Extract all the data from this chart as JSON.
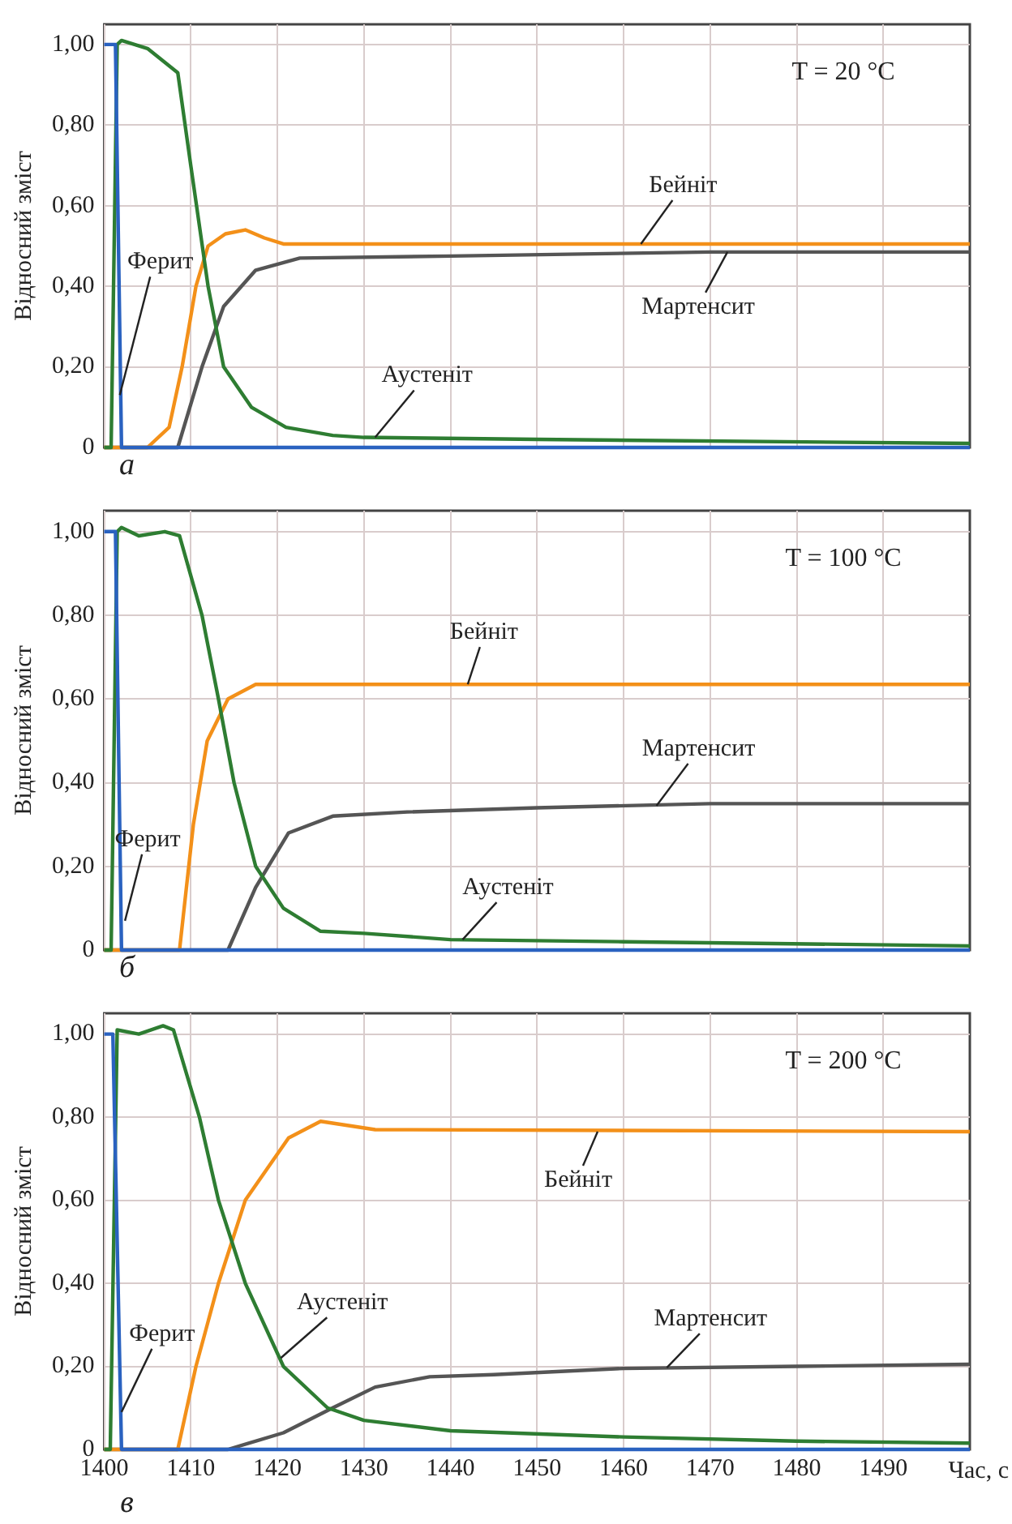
{
  "chart_data": [
    {
      "type": "line",
      "ylabel": "Відносний зміст",
      "xlim": [
        1400,
        1500
      ],
      "xticks": [
        1400,
        1410,
        1420,
        1430,
        1440,
        1450,
        1460,
        1470,
        1480,
        1490
      ],
      "ylim": [
        0,
        1.05
      ],
      "yticks": [
        {
          "value": 0,
          "label": "0"
        },
        {
          "value": 0.2,
          "label": "0,20"
        },
        {
          "value": 0.4,
          "label": "0,40"
        },
        {
          "value": 0.6,
          "label": "0,60"
        },
        {
          "value": 0.8,
          "label": "0,80"
        },
        {
          "value": 1,
          "label": "1,00"
        }
      ],
      "grid": true,
      "tick_labels": "y",
      "series": [
        {
          "color": "#2a62c0",
          "x": [
            1400,
            1401.3,
            1402,
            1500
          ],
          "values": [
            1,
            1,
            0,
            0
          ]
        },
        {
          "color": "#2e7d32",
          "x": [
            1400,
            1400.8,
            1401.5,
            1402,
            1405,
            1408.5,
            1410,
            1412,
            1413.8,
            1417,
            1421,
            1426.4,
            1430,
            1450,
            1500
          ],
          "values": [
            0,
            0,
            1,
            1.01,
            0.99,
            0.93,
            0.7,
            0.4,
            0.2,
            0.1,
            0.05,
            0.03,
            0.025,
            0.02,
            0.01
          ]
        },
        {
          "color": "#f39019",
          "x": [
            1400,
            1405,
            1407.5,
            1409,
            1410.6,
            1412,
            1414,
            1416.3,
            1418.5,
            1420.7,
            1500
          ],
          "values": [
            0,
            0,
            0.05,
            0.2,
            0.4,
            0.5,
            0.53,
            0.54,
            0.52,
            0.505,
            0.505
          ]
        },
        {
          "color": "#555555",
          "x": [
            1400,
            1408.5,
            1411.3,
            1413.8,
            1417.5,
            1422.6,
            1440,
            1470,
            1500
          ],
          "values": [
            0,
            0,
            0.2,
            0.35,
            0.44,
            0.47,
            0.475,
            0.485,
            0.485
          ]
        }
      ],
      "annotations": [
        "T = 20 °C",
        "а",
        {
          "text": "Ферит",
          "x": 1401.8,
          "y": 0.13
        },
        {
          "text": "Аустеніт",
          "x": 1431.3,
          "y": 0.025
        },
        {
          "text": "Бейніт",
          "x": 1462,
          "y": 0.505
        },
        {
          "text": "Мартенсит",
          "x": 1472,
          "y": 0.485
        }
      ]
    },
    {
      "type": "line",
      "ylabel": "Відносний зміст",
      "xlim": [
        1400,
        1500
      ],
      "xticks": [
        1400,
        1410,
        1420,
        1430,
        1440,
        1450,
        1460,
        1470,
        1480,
        1490
      ],
      "ylim": [
        0,
        1.05
      ],
      "yticks": [
        {
          "value": 0,
          "label": "0"
        },
        {
          "value": 0.2,
          "label": "0,20"
        },
        {
          "value": 0.4,
          "label": "0,40"
        },
        {
          "value": 0.6,
          "label": "0,60"
        },
        {
          "value": 0.8,
          "label": "0,80"
        },
        {
          "value": 1,
          "label": "1,00"
        }
      ],
      "grid": true,
      "tick_labels": "y",
      "series": [
        {
          "color": "#2a62c0",
          "x": [
            1400,
            1401.3,
            1402,
            1500
          ],
          "values": [
            1,
            1,
            0,
            0
          ]
        },
        {
          "color": "#2e7d32",
          "x": [
            1400,
            1400.8,
            1401.5,
            1402,
            1404,
            1407,
            1408.7,
            1411.3,
            1413.2,
            1415,
            1417.5,
            1420.7,
            1425,
            1430,
            1440,
            1460,
            1500
          ],
          "values": [
            0,
            0,
            1,
            1.01,
            0.99,
            1,
            0.99,
            0.8,
            0.6,
            0.4,
            0.2,
            0.1,
            0.045,
            0.04,
            0.025,
            0.02,
            0.01
          ]
        },
        {
          "color": "#f39019",
          "x": [
            1400,
            1408.7,
            1410.3,
            1411.9,
            1414.3,
            1417.5,
            1500
          ],
          "values": [
            0,
            0,
            0.3,
            0.5,
            0.6,
            0.635,
            0.635
          ]
        },
        {
          "color": "#555555",
          "x": [
            1400,
            1414.3,
            1417.5,
            1421.3,
            1426.4,
            1435,
            1450,
            1470,
            1500
          ],
          "values": [
            0,
            0,
            0.15,
            0.28,
            0.32,
            0.33,
            0.34,
            0.35,
            0.35
          ]
        }
      ],
      "annotations": [
        "T = 100 °C",
        "б",
        {
          "text": "Ферит",
          "x": 1402.4,
          "y": 0.07
        },
        {
          "text": "Аустеніт",
          "x": 1441.4,
          "y": 0.025
        },
        {
          "text": "Бейніт",
          "x": 1442,
          "y": 0.635
        },
        {
          "text": "Мартенсит",
          "x": 1463.8,
          "y": 0.345
        }
      ]
    },
    {
      "type": "line",
      "ylabel": "Відносний зміст",
      "xlabel": "Час, с",
      "xlim": [
        1400,
        1500
      ],
      "xticks": [
        1400,
        1410,
        1420,
        1430,
        1440,
        1450,
        1460,
        1470,
        1480,
        1490
      ],
      "ylim": [
        0,
        1.05
      ],
      "yticks": [
        {
          "value": 0,
          "label": "0"
        },
        {
          "value": 0.2,
          "label": "0,20"
        },
        {
          "value": 0.4,
          "label": "0,40"
        },
        {
          "value": 0.6,
          "label": "0,60"
        },
        {
          "value": 0.8,
          "label": "0,80"
        },
        {
          "value": 1,
          "label": "1,00"
        }
      ],
      "grid": true,
      "series": [
        {
          "color": "#2a62c0",
          "x": [
            1400,
            1401,
            1402,
            1500
          ],
          "values": [
            1,
            1,
            0,
            0
          ]
        },
        {
          "color": "#2e7d32",
          "x": [
            1400,
            1400.7,
            1401.5,
            1404,
            1406.8,
            1408,
            1411,
            1413.2,
            1416.3,
            1420.7,
            1425.8,
            1430,
            1440,
            1460,
            1480,
            1500
          ],
          "values": [
            0,
            0,
            1.01,
            1,
            1.02,
            1.01,
            0.8,
            0.6,
            0.4,
            0.2,
            0.1,
            0.07,
            0.045,
            0.03,
            0.02,
            0.015
          ]
        },
        {
          "color": "#f39019",
          "x": [
            1400,
            1408.5,
            1410.6,
            1413.2,
            1416.3,
            1421.3,
            1425,
            1431.3,
            1500
          ],
          "values": [
            0,
            0,
            0.2,
            0.4,
            0.6,
            0.75,
            0.79,
            0.77,
            0.765
          ]
        },
        {
          "color": "#555555",
          "x": [
            1400,
            1414.3,
            1420.7,
            1426.4,
            1431.3,
            1437.6,
            1445,
            1460,
            1480,
            1500
          ],
          "values": [
            0,
            0,
            0.04,
            0.1,
            0.15,
            0.175,
            0.18,
            0.195,
            0.2,
            0.205
          ]
        }
      ],
      "annotations": [
        "T = 200 °C",
        "в",
        {
          "text": "Ферит",
          "x": 1402,
          "y": 0.09
        },
        {
          "text": "Аустеніт",
          "x": 1420.4,
          "y": 0.22
        },
        {
          "text": "Бейніт",
          "x": 1457,
          "y": 0.765
        },
        {
          "text": "Мартенсит",
          "x": 1465,
          "y": 0.197
        }
      ]
    }
  ]
}
